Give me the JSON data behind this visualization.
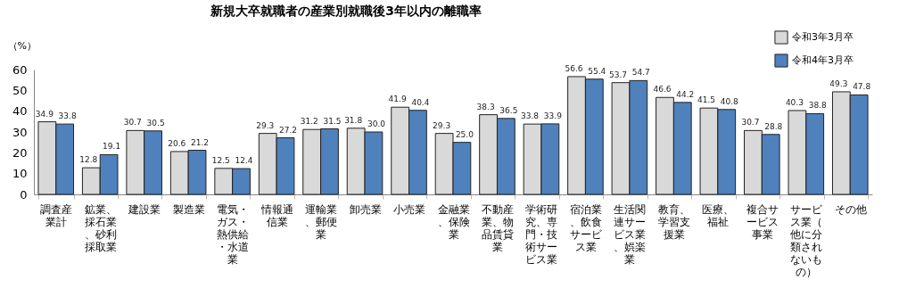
{
  "chart_data": {
    "type": "bar",
    "title": "新規大卒就職者の産業別就職後3年以内の離職率",
    "ylabel": "（%）",
    "categories": [
      "調査産業計",
      "鉱業、採石業、砂利採取業",
      "建設業",
      "製造業",
      "電気・ガス・熱供給・水道業",
      "情報通信業",
      "運輸業、郵便業",
      "卸売業",
      "小売業",
      "金融業、保険業",
      "不動産業、物品賃貸業",
      "学術研究、専門・技術サービス業",
      "宿泊業、飲食サービス業",
      "生活関連サービス業、娯楽業",
      "教育、学習支援業",
      "医療、福祉",
      "複合サービス事業",
      "サービス業（他に分類されないもの）",
      "その他"
    ],
    "series": [
      {
        "name": "令和3年3月卒",
        "color": "#d9d9d9",
        "values": [
          34.9,
          12.8,
          30.7,
          20.6,
          12.5,
          29.3,
          31.2,
          31.8,
          41.9,
          29.3,
          38.3,
          33.8,
          56.6,
          53.7,
          46.6,
          41.5,
          30.7,
          40.3,
          49.3
        ],
        "value_labels": [
          "34.9",
          "12.8",
          "30.7",
          "20.6",
          "12.5",
          "29.3",
          "31.2",
          "31.8",
          "41.9",
          "29.3",
          "38.3",
          "33.8",
          "56.6",
          "53.7",
          "46.6",
          "41.5",
          "30.7",
          "40.3",
          "49.3"
        ]
      },
      {
        "name": "令和4年3月卒",
        "color": "#4f81bd",
        "values": [
          33.8,
          19.1,
          30.5,
          21.2,
          12.4,
          27.2,
          31.5,
          30.0,
          40.4,
          25.0,
          36.5,
          33.9,
          55.4,
          54.7,
          44.2,
          40.8,
          28.8,
          38.8,
          47.8
        ],
        "value_labels": [
          "33.8",
          "19.1",
          "30.5",
          "21.2",
          "12.4",
          "27.2",
          "31.5",
          "30.0",
          "40.4",
          "25.0",
          "36.5",
          "33.9",
          "55.4",
          "54.7",
          "44.2",
          "40.8",
          "28.8",
          "38.8",
          "47.8"
        ]
      }
    ],
    "ylim": [
      0,
      60
    ],
    "yticks": [
      0,
      10,
      20,
      30,
      40,
      50,
      60
    ],
    "grid": false,
    "legend": "top right"
  }
}
